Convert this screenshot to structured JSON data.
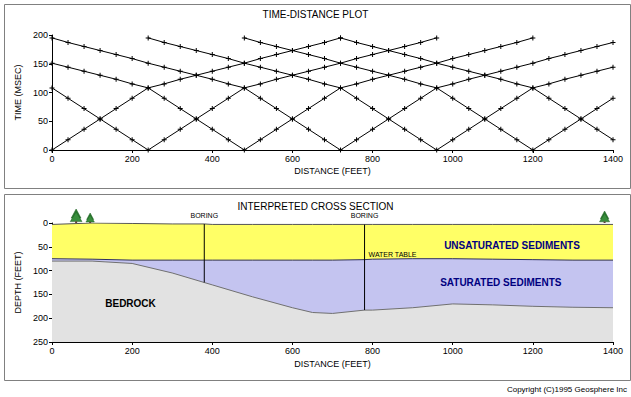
{
  "chart_data": [
    {
      "type": "line",
      "title": "TIME-DISTANCE PLOT",
      "xlabel": "DISTANCE (FEET)",
      "ylabel": "TIME (MSEC)",
      "xlim": [
        0,
        1400
      ],
      "xticks": [
        0,
        200,
        400,
        600,
        800,
        1000,
        1200,
        1400
      ],
      "ylim": [
        0,
        200
      ],
      "yticks": [
        0,
        50,
        100,
        150,
        200
      ],
      "grid": false,
      "color": "#000000",
      "marker": "cross",
      "line_style": "solid",
      "series": [
        {
          "x": [
            0,
            40,
            80,
            120,
            160,
            200,
            240,
            280,
            320,
            360,
            400,
            440,
            480,
            520,
            560,
            600,
            640,
            680,
            720
          ],
          "values": [
            0,
            18,
            36,
            54,
            72,
            90,
            108,
            115,
            123,
            130,
            137,
            144,
            151,
            159,
            166,
            173,
            180,
            187,
            195
          ]
        },
        {
          "x": [
            0,
            40,
            80,
            120,
            160,
            200,
            240,
            280,
            320,
            360,
            400,
            440,
            480,
            520,
            560,
            600,
            640,
            680,
            720,
            760,
            800,
            840,
            880,
            920,
            960
          ],
          "values": [
            108,
            90,
            72,
            54,
            36,
            18,
            0,
            18,
            36,
            54,
            72,
            90,
            108,
            115,
            123,
            130,
            137,
            144,
            151,
            159,
            166,
            173,
            180,
            187,
            195
          ]
        },
        {
          "x": [
            0,
            40,
            80,
            120,
            160,
            200,
            240,
            280,
            320,
            360,
            400,
            440,
            480,
            520,
            560,
            600,
            640,
            680,
            720,
            760,
            800,
            840,
            880,
            920,
            960,
            1000,
            1040,
            1080,
            1120,
            1160,
            1200
          ],
          "values": [
            151,
            144,
            137,
            130,
            123,
            115,
            108,
            90,
            72,
            54,
            36,
            18,
            0,
            18,
            36,
            54,
            72,
            90,
            108,
            115,
            123,
            130,
            137,
            144,
            151,
            159,
            166,
            173,
            180,
            187,
            195
          ]
        },
        {
          "x": [
            0,
            40,
            80,
            120,
            160,
            200,
            240,
            280,
            320,
            360,
            400,
            440,
            480,
            520,
            560,
            600,
            640,
            680,
            720,
            760,
            800,
            840,
            880,
            920,
            960,
            1000,
            1040,
            1080,
            1120,
            1160,
            1200,
            1240,
            1280,
            1320,
            1360,
            1400
          ],
          "values": [
            195,
            187,
            180,
            173,
            166,
            159,
            151,
            144,
            137,
            130,
            123,
            115,
            108,
            90,
            72,
            54,
            36,
            18,
            0,
            18,
            36,
            54,
            72,
            90,
            108,
            115,
            123,
            130,
            137,
            144,
            151,
            159,
            166,
            173,
            180,
            187
          ]
        },
        {
          "x": [
            240,
            280,
            320,
            360,
            400,
            440,
            480,
            520,
            560,
            600,
            640,
            680,
            720,
            760,
            800,
            840,
            880,
            920,
            960,
            1000,
            1040,
            1080,
            1120,
            1160,
            1200,
            1240,
            1280,
            1320,
            1360,
            1400
          ],
          "values": [
            195,
            187,
            180,
            173,
            166,
            159,
            151,
            144,
            137,
            130,
            123,
            115,
            108,
            90,
            72,
            54,
            36,
            18,
            0,
            18,
            36,
            54,
            72,
            90,
            108,
            115,
            123,
            130,
            137,
            144
          ]
        },
        {
          "x": [
            480,
            520,
            560,
            600,
            640,
            680,
            720,
            760,
            800,
            840,
            880,
            920,
            960,
            1000,
            1040,
            1080,
            1120,
            1160,
            1200,
            1240,
            1280,
            1320,
            1360,
            1400
          ],
          "values": [
            195,
            187,
            180,
            173,
            166,
            159,
            151,
            144,
            137,
            130,
            123,
            115,
            108,
            90,
            72,
            54,
            36,
            18,
            0,
            18,
            36,
            54,
            72,
            90
          ]
        },
        {
          "x": [
            720,
            760,
            800,
            840,
            880,
            920,
            960,
            1000,
            1040,
            1080,
            1120,
            1160,
            1200,
            1240,
            1280,
            1320,
            1360,
            1400
          ],
          "values": [
            195,
            187,
            180,
            173,
            166,
            159,
            151,
            144,
            137,
            130,
            123,
            115,
            108,
            90,
            72,
            54,
            36,
            18
          ]
        }
      ]
    },
    {
      "type": "area",
      "title": "INTERPRETED CROSS SECTION",
      "xlabel": "DISTANCE (FEET)",
      "ylabel": "DEPTH (FEET)",
      "xlim": [
        0,
        1400
      ],
      "xticks": [
        0,
        200,
        400,
        600,
        800,
        1000,
        1200,
        1400
      ],
      "ylim": [
        250,
        0
      ],
      "yticks": [
        0,
        50,
        100,
        150,
        200,
        250
      ],
      "grid": false,
      "series": [
        {
          "name": "UNSATURATED SEDIMENTS",
          "color": "#ffff66",
          "x": [
            0,
            100,
            200,
            300,
            380,
            400,
            500,
            600,
            650,
            700,
            780,
            800,
            900,
            1000,
            1100,
            1200,
            1300,
            1400
          ],
          "values": [
            3,
            0,
            1,
            2,
            2,
            3,
            3,
            3,
            3,
            3,
            3,
            3,
            3,
            3,
            3,
            3,
            3,
            3
          ]
        },
        {
          "name": "SATURATED SEDIMENTS",
          "color": "#c4c4f0",
          "x": [
            0,
            100,
            200,
            300,
            380,
            400,
            500,
            600,
            650,
            700,
            780,
            800,
            900,
            1000,
            1100,
            1200,
            1300,
            1400
          ],
          "values": [
            75,
            76,
            78,
            78,
            78,
            78,
            78,
            78,
            78,
            78,
            77,
            76,
            75,
            75,
            76,
            77,
            78,
            78
          ]
        },
        {
          "name": "BEDROCK",
          "color": "#e2e2e2",
          "x": [
            0,
            100,
            200,
            300,
            380,
            400,
            500,
            600,
            650,
            700,
            780,
            800,
            900,
            1000,
            1100,
            1200,
            1300,
            1400
          ],
          "values": [
            80,
            80,
            85,
            105,
            125,
            130,
            155,
            178,
            188,
            190,
            183,
            183,
            178,
            170,
            172,
            175,
            177,
            178
          ]
        }
      ],
      "borings": [
        {
          "label": "BORING",
          "x": 380,
          "depth": [
            2,
            125
          ]
        },
        {
          "label": "BORING",
          "x": 780,
          "depth": [
            3,
            183
          ]
        }
      ],
      "annotations": [
        {
          "text": "WATER TABLE"
        }
      ]
    }
  ],
  "credit": "Copyright (C)1995 Geosphere Inc"
}
